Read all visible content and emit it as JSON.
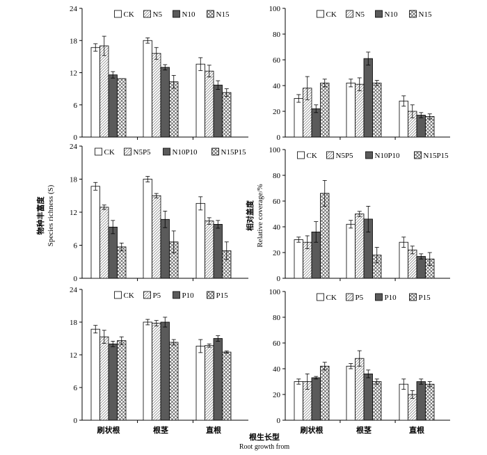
{
  "figure": {
    "left_axis_title_cn": "物种丰富度",
    "left_axis_title_en": "Species richness (S)",
    "right_axis_title_cn": "相对盖度",
    "right_axis_title_en": "Relative coverage/%",
    "bottom_axis_title_cn": "根生长型",
    "bottom_axis_title_en": "Root growth from"
  },
  "colors": {
    "CK": "#ffffff",
    "low": "hatch",
    "mid": "#595959",
    "high": "crosshatch"
  },
  "chart_data": [
    {
      "type": "bar",
      "categories": [
        "刷状根",
        "根茎",
        "直根"
      ],
      "ylim": [
        0,
        24
      ],
      "yticks": [
        0,
        6,
        12,
        18,
        24
      ],
      "legend_placement": "top",
      "series": [
        {
          "name": "CK",
          "values": [
            16.7,
            18.0,
            13.6
          ],
          "errors": [
            0.7,
            0.5,
            1.2
          ]
        },
        {
          "name": "N5",
          "values": [
            17.0,
            15.6,
            12.3
          ],
          "errors": [
            1.8,
            1.1,
            1.1
          ]
        },
        {
          "name": "N10",
          "values": [
            11.6,
            13.0,
            9.7
          ],
          "errors": [
            0.6,
            0.5,
            0.8
          ]
        },
        {
          "name": "N15",
          "values": [
            10.9,
            10.3,
            8.3
          ],
          "errors": [
            0.0,
            1.2,
            0.7
          ]
        }
      ]
    },
    {
      "type": "bar",
      "categories": [
        "刷状根",
        "根茎",
        "直根"
      ],
      "ylim": [
        0,
        100
      ],
      "yticks": [
        0,
        20,
        40,
        60,
        80,
        100
      ],
      "legend_placement": "top",
      "series": [
        {
          "name": "CK",
          "values": [
            30,
            42,
            28
          ],
          "errors": [
            3,
            3,
            4
          ]
        },
        {
          "name": "N5",
          "values": [
            38,
            41,
            20
          ],
          "errors": [
            9,
            5,
            5
          ]
        },
        {
          "name": "N10",
          "values": [
            22,
            61,
            17
          ],
          "errors": [
            3,
            5,
            2
          ]
        },
        {
          "name": "N15",
          "values": [
            42,
            42,
            16
          ],
          "errors": [
            3,
            2,
            2
          ]
        }
      ]
    },
    {
      "type": "bar",
      "categories": [
        "刷状根",
        "根茎",
        "直根"
      ],
      "ylim": [
        0,
        24
      ],
      "yticks": [
        0,
        6,
        12,
        18,
        24
      ],
      "legend_placement": "top",
      "series": [
        {
          "name": "CK",
          "values": [
            16.7,
            18.0,
            13.6
          ],
          "errors": [
            0.7,
            0.5,
            1.2
          ]
        },
        {
          "name": "N5P5",
          "values": [
            12.9,
            15.0,
            10.4
          ],
          "errors": [
            0.4,
            0.4,
            0.6
          ]
        },
        {
          "name": "N10P10",
          "values": [
            9.3,
            10.7,
            9.8
          ],
          "errors": [
            1.2,
            1.5,
            0.7
          ]
        },
        {
          "name": "N15P15",
          "values": [
            5.7,
            6.6,
            5.0
          ],
          "errors": [
            0.7,
            2.0,
            1.6
          ]
        }
      ]
    },
    {
      "type": "bar",
      "categories": [
        "刷状根",
        "根茎",
        "直根"
      ],
      "ylim": [
        0,
        100
      ],
      "yticks": [
        0,
        20,
        40,
        60,
        80,
        100
      ],
      "legend_placement": "top",
      "series": [
        {
          "name": "CK",
          "values": [
            30,
            42,
            28
          ],
          "errors": [
            2,
            3,
            4
          ]
        },
        {
          "name": "N5P5",
          "values": [
            28,
            50,
            22
          ],
          "errors": [
            5,
            2,
            3
          ]
        },
        {
          "name": "N10P10",
          "values": [
            36,
            46,
            17
          ],
          "errors": [
            8,
            10,
            2
          ]
        },
        {
          "name": "N15P15",
          "values": [
            66,
            18,
            15
          ],
          "errors": [
            10,
            6,
            5
          ]
        }
      ]
    },
    {
      "type": "bar",
      "categories": [
        "刷状根",
        "根茎",
        "直根"
      ],
      "ylim": [
        0,
        24
      ],
      "yticks": [
        0,
        6,
        12,
        18,
        24
      ],
      "legend_placement": "top",
      "series": [
        {
          "name": "CK",
          "values": [
            16.7,
            18.0,
            13.6
          ],
          "errors": [
            0.7,
            0.5,
            1.2
          ]
        },
        {
          "name": "P5",
          "values": [
            15.3,
            17.8,
            13.7
          ],
          "errors": [
            1.2,
            0.5,
            0.3
          ]
        },
        {
          "name": "P10",
          "values": [
            14.0,
            18.0,
            15.0
          ],
          "errors": [
            0.5,
            0.9,
            0.5
          ]
        },
        {
          "name": "P15",
          "values": [
            14.6,
            14.3,
            12.5
          ],
          "errors": [
            0.7,
            0.5,
            0.2
          ]
        }
      ]
    },
    {
      "type": "bar",
      "categories": [
        "刷状根",
        "根茎",
        "直根"
      ],
      "ylim": [
        0,
        100
      ],
      "yticks": [
        0,
        20,
        40,
        60,
        80,
        100
      ],
      "legend_placement": "top",
      "series": [
        {
          "name": "CK",
          "values": [
            30,
            42,
            28
          ],
          "errors": [
            2,
            2,
            4
          ]
        },
        {
          "name": "P5",
          "values": [
            30,
            48,
            20
          ],
          "errors": [
            6,
            6,
            3
          ]
        },
        {
          "name": "P10",
          "values": [
            33,
            36,
            30
          ],
          "errors": [
            1,
            3,
            2
          ]
        },
        {
          "name": "P15",
          "values": [
            42,
            30,
            28
          ],
          "errors": [
            3,
            2,
            2
          ]
        }
      ]
    }
  ]
}
